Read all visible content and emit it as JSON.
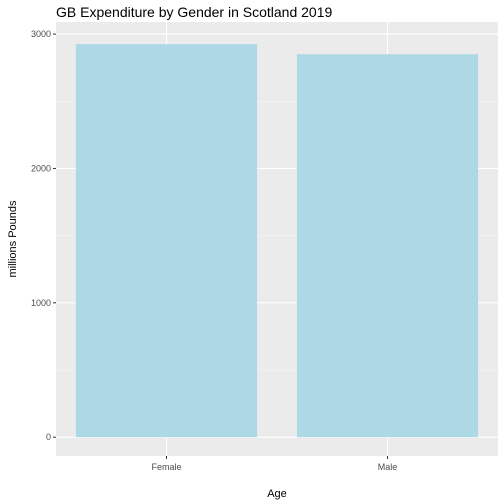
{
  "chart_data": {
    "type": "bar",
    "title": "GB Expenditure by Gender in Scotland 2019",
    "xlabel": "Age",
    "ylabel": "millions Pounds",
    "categories": [
      "Female",
      "Male"
    ],
    "values": [
      2925,
      2850
    ],
    "ylim": [
      -140,
      3090
    ],
    "yticks": [
      0,
      1000,
      2000,
      3000
    ],
    "grid": true,
    "legend": "none",
    "colors": {
      "bar": "#add8e6",
      "panel": "#ebebeb",
      "grid_major": "#ffffff",
      "grid_minor": "#f7f7f7",
      "tick": "#333333"
    }
  }
}
